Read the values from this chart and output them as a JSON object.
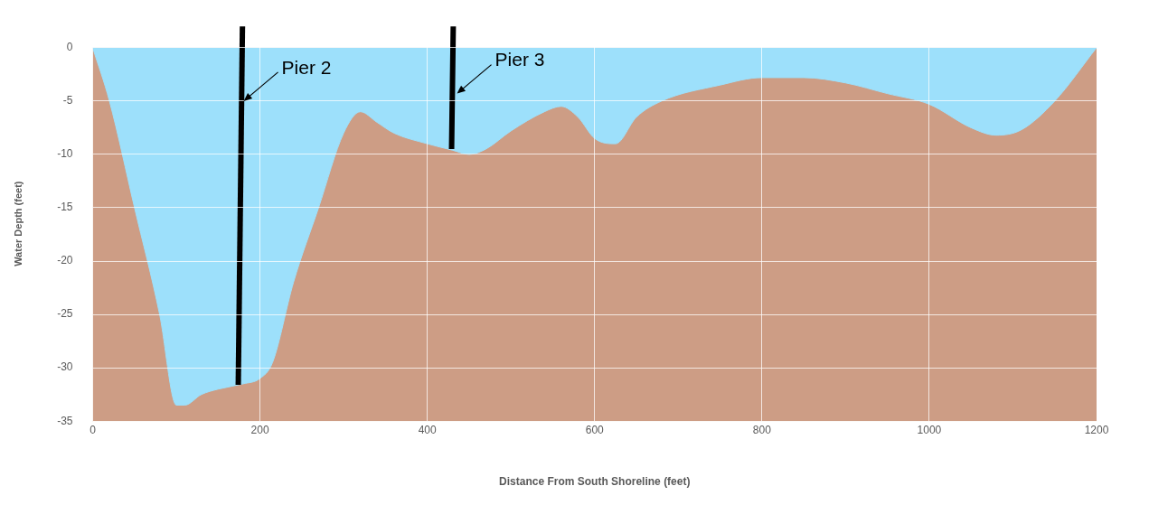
{
  "chart_data": {
    "type": "area",
    "xlabel": "Distance From South Shoreline (feet)",
    "ylabel": "Water Depth (feet)",
    "x": [
      0,
      20,
      50,
      80,
      100,
      110,
      130,
      150,
      180,
      200,
      215,
      240,
      270,
      300,
      320,
      340,
      360,
      400,
      430,
      450,
      470,
      500,
      540,
      560,
      580,
      600,
      625,
      650,
      680,
      750,
      800,
      850,
      900,
      950,
      1000,
      1050,
      1080,
      1110,
      1150,
      1200
    ],
    "series": [
      {
        "color": "#9de0fb",
        "values": [
          0,
          -5,
          -15,
          -25,
          -33.5,
          -33.5,
          -32.5,
          -32,
          -31.5,
          -31,
          -29.5,
          -22,
          -15,
          -8,
          -6,
          -7,
          -8,
          -9,
          -9.6,
          -10,
          -9.5,
          -7.8,
          -6,
          -5.5,
          -6.5,
          -8.5,
          -9,
          -6.5,
          -5,
          -3.5,
          -2.8,
          -2.8,
          -3.3,
          -4.3,
          -5.3,
          -7.5,
          -8.2,
          -7.7,
          -5,
          0
        ]
      },
      {
        "type": "line",
        "color": "#000000",
        "x": [
          174,
          179
        ],
        "values": [
          -31.6,
          2
        ]
      },
      {
        "type": "line",
        "color": "#000000",
        "x": [
          429,
          431
        ],
        "values": [
          -9.5,
          2
        ]
      }
    ],
    "xlim": [
      0,
      1200
    ],
    "xticks": [
      0,
      200,
      400,
      600,
      800,
      1000,
      1200
    ],
    "ylim": [
      -35,
      2
    ],
    "yticks": [
      -35,
      -30,
      -25,
      -20,
      -15,
      -10,
      -5,
      0
    ],
    "bands": [
      {
        "axis": "y",
        "from": -35,
        "to": 0,
        "color": "#cd9d85"
      }
    ],
    "annotations": [
      {
        "text": "Pier 2",
        "x": 174,
        "y": -5
      },
      {
        "text": "Pier 3",
        "x": 429,
        "y": -4.3
      }
    ],
    "grid": true,
    "legend": false,
    "marker": "none"
  }
}
